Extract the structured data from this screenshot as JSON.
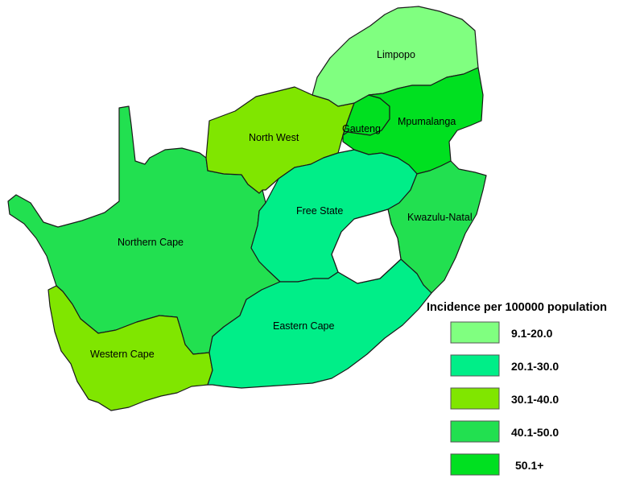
{
  "map": {
    "country": "South Africa",
    "provinces": [
      {
        "id": "limpopo",
        "name": "Limpopo",
        "class": "9.1-20.0"
      },
      {
        "id": "mpumalanga",
        "name": "Mpumalanga",
        "class": "50.1+"
      },
      {
        "id": "gauteng",
        "name": "Gauteng",
        "class": "50.1+"
      },
      {
        "id": "north-west",
        "name": "North West",
        "class": "30.1-40.0"
      },
      {
        "id": "free-state",
        "name": "Free State",
        "class": "20.1-30.0"
      },
      {
        "id": "kwazulu-natal",
        "name": "Kwazulu-Natal",
        "class": "40.1-50.0"
      },
      {
        "id": "northern-cape",
        "name": "Northern Cape",
        "class": "40.1-50.0"
      },
      {
        "id": "western-cape",
        "name": "Western Cape",
        "class": "30.1-40.0"
      },
      {
        "id": "eastern-cape",
        "name": "Eastern Cape",
        "class": "20.1-30.0"
      }
    ],
    "enclave_color": "#ffffff"
  },
  "legend": {
    "title": "Incidence per 100000 population",
    "classes": [
      {
        "label": "9.1-20.0",
        "color": "#80ff80"
      },
      {
        "label": "20.1-30.0",
        "color": "#00ee88"
      },
      {
        "label": "30.1-40.0",
        "color": "#80e600"
      },
      {
        "label": "40.1-50.0",
        "color": "#22e050"
      },
      {
        "label": "50.1+",
        "color": "#00e020"
      }
    ]
  }
}
